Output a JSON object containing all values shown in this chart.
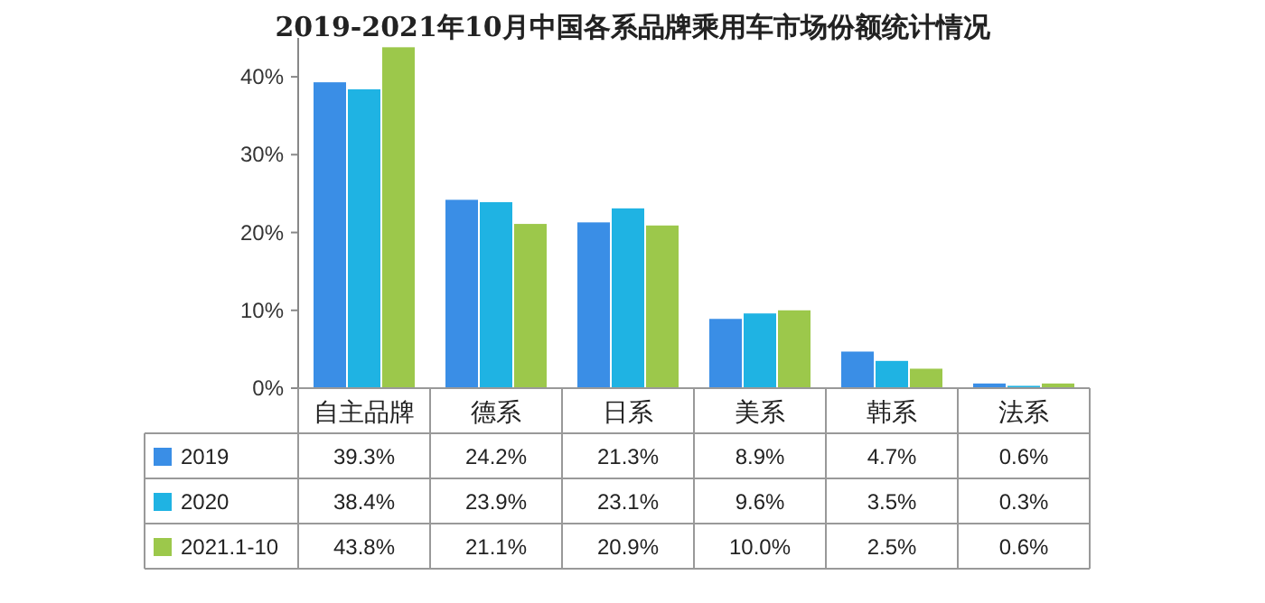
{
  "chart_data": {
    "type": "bar",
    "title": "2019-2021年10月中国各系品牌乘用车市场份额统计情况",
    "categories": [
      "自主品牌",
      "德系",
      "日系",
      "美系",
      "韩系",
      "法系"
    ],
    "series": [
      {
        "name": "2019",
        "color": "#3a8ee6",
        "values": [
          39.3,
          24.2,
          21.3,
          8.9,
          4.7,
          0.6
        ],
        "value_labels": [
          "39.3%",
          "24.2%",
          "21.3%",
          "8.9%",
          "4.7%",
          "0.6%"
        ]
      },
      {
        "name": "2020",
        "color": "#1fb3e3",
        "values": [
          38.4,
          23.9,
          23.1,
          9.6,
          3.5,
          0.3
        ],
        "value_labels": [
          "38.4%",
          "23.9%",
          "23.1%",
          "9.6%",
          "3.5%",
          "0.3%"
        ]
      },
      {
        "name": "2021.1-10",
        "color": "#9cc84b",
        "values": [
          43.8,
          21.1,
          20.9,
          10.0,
          2.5,
          0.6
        ],
        "value_labels": [
          "43.8%",
          "21.1%",
          "20.9%",
          "10.0%",
          "2.5%",
          "0.6%"
        ]
      }
    ],
    "ylim": [
      0,
      45
    ],
    "yticks": [
      {
        "value": 0,
        "label": "0%"
      },
      {
        "value": 10,
        "label": "10%"
      },
      {
        "value": 20,
        "label": "20%"
      },
      {
        "value": 30,
        "label": "30%"
      },
      {
        "value": 40,
        "label": "40%"
      }
    ],
    "legend": "bottom left"
  }
}
